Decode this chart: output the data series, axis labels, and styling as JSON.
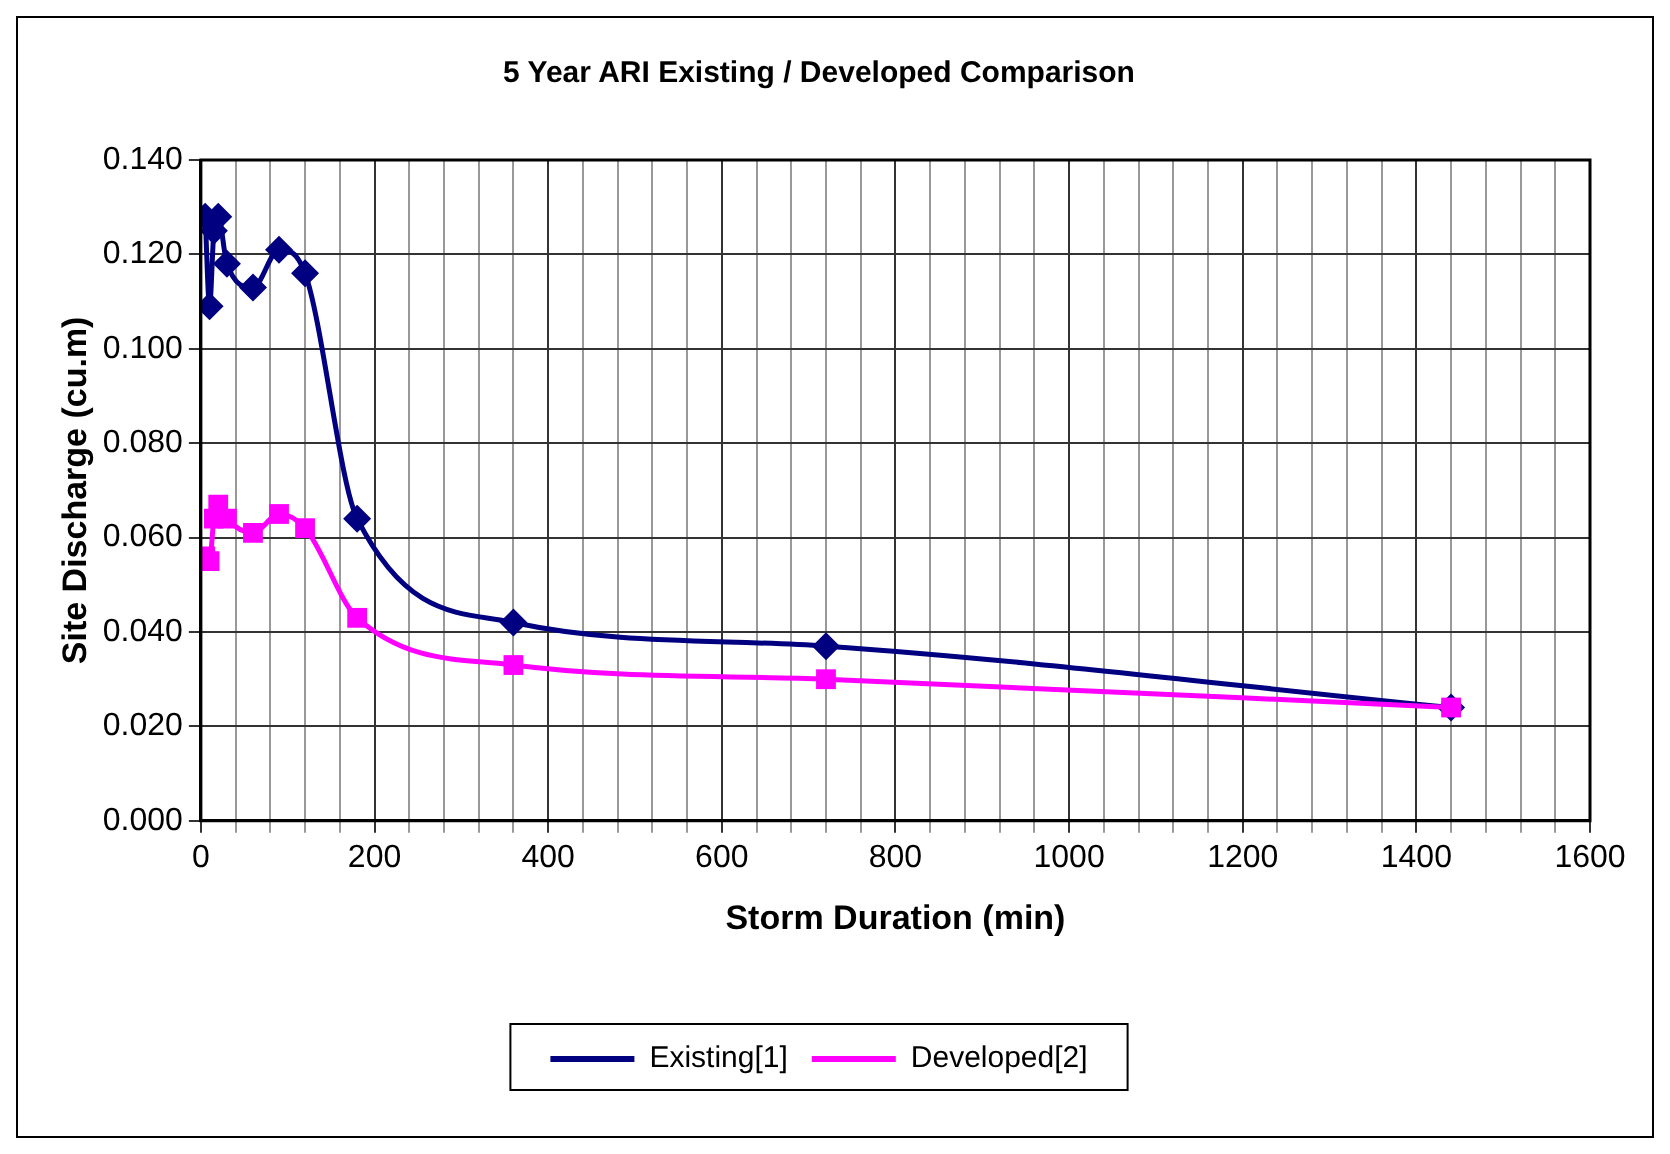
{
  "chart_data": {
    "type": "line",
    "title": "5 Year ARI Existing / Developed Comparison",
    "xlabel": "Storm Duration (min)",
    "ylabel": "Site Discharge (cu.m)",
    "series": [
      {
        "name": "Existing[1]",
        "color": "#000080",
        "marker": "diamond",
        "x": [
          5,
          10,
          15,
          20,
          30,
          60,
          90,
          120,
          180,
          360,
          720,
          1440
        ],
        "values": [
          0.128,
          0.109,
          0.125,
          0.128,
          0.118,
          0.113,
          0.121,
          0.116,
          0.064,
          0.042,
          0.037,
          0.024
        ]
      },
      {
        "name": "Developed[2]",
        "color": "#ff00ff",
        "marker": "square",
        "x": [
          5,
          10,
          15,
          20,
          30,
          60,
          90,
          120,
          180,
          360,
          720,
          1440
        ],
        "values": [
          0.056,
          0.055,
          0.064,
          0.067,
          0.064,
          0.061,
          0.065,
          0.062,
          0.043,
          0.033,
          0.03,
          0.024
        ]
      }
    ],
    "xlim": [
      0,
      1600
    ],
    "xticks": [
      0,
      {
        "value": 40,
        "label": null
      },
      {
        "value": 80,
        "label": null
      },
      {
        "value": 120,
        "label": null
      },
      {
        "value": 160,
        "label": null
      },
      200,
      {
        "value": 240,
        "label": null
      },
      {
        "value": 280,
        "label": null
      },
      {
        "value": 320,
        "label": null
      },
      {
        "value": 360,
        "label": null
      },
      400,
      {
        "value": 440,
        "label": null
      },
      {
        "value": 480,
        "label": null
      },
      {
        "value": 520,
        "label": null
      },
      {
        "value": 560,
        "label": null
      },
      600,
      {
        "value": 640,
        "label": null
      },
      {
        "value": 680,
        "label": null
      },
      {
        "value": 720,
        "label": null
      },
      {
        "value": 760,
        "label": null
      },
      800,
      {
        "value": 840,
        "label": null
      },
      {
        "value": 880,
        "label": null
      },
      {
        "value": 920,
        "label": null
      },
      {
        "value": 960,
        "label": null
      },
      1000,
      {
        "value": 1040,
        "label": null
      },
      {
        "value": 1080,
        "label": null
      },
      {
        "value": 1120,
        "label": null
      },
      {
        "value": 1160,
        "label": null
      },
      1200,
      {
        "value": 1240,
        "label": null
      },
      {
        "value": 1280,
        "label": null
      },
      {
        "value": 1320,
        "label": null
      },
      {
        "value": 1360,
        "label": null
      },
      1400,
      {
        "value": 1440,
        "label": null
      },
      {
        "value": 1480,
        "label": null
      },
      {
        "value": 1520,
        "label": null
      },
      {
        "value": 1560,
        "label": null
      },
      1600
    ],
    "ylim": [
      0,
      0.14
    ],
    "yticks": [
      {
        "value": 0,
        "label": "0.000"
      },
      {
        "value": 0.02,
        "label": "0.020"
      },
      {
        "value": 0.04,
        "label": "0.040"
      },
      {
        "value": 0.06,
        "label": "0.060"
      },
      {
        "value": 0.08,
        "label": "0.080"
      },
      {
        "value": 0.1,
        "label": "0.100"
      },
      {
        "value": 0.12,
        "label": "0.120"
      },
      {
        "value": 0.14,
        "label": "0.140"
      }
    ],
    "grid": true,
    "legend": "bottom",
    "line_style": "solid"
  }
}
